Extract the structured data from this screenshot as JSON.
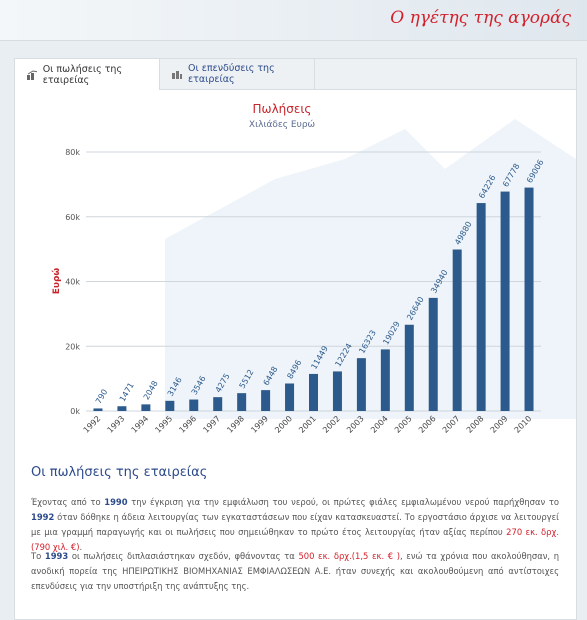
{
  "header": {
    "slogan": "Ο ηγέτης της αγοράς"
  },
  "tabs": [
    "Οι πωλήσεις της εταιρείας",
    "Οι επενδύσεις της εταιρείας"
  ],
  "chart_data": {
    "type": "bar",
    "title": "Πωλήσεις",
    "subtitle": "Χιλιάδες Ευρώ",
    "y_label": "Ευρώ",
    "categories": [
      "1992",
      "1993",
      "1994",
      "1995",
      "1996",
      "1997",
      "1998",
      "1999",
      "2000",
      "2001",
      "2002",
      "2003",
      "2004",
      "2005",
      "2006",
      "2007",
      "2008",
      "2009",
      "2010"
    ],
    "values": [
      790,
      1471,
      2048,
      3146,
      3546,
      4275,
      5512,
      6448,
      8496,
      11449,
      12224,
      16323,
      19029,
      26640,
      34940,
      49880,
      64226,
      67778,
      69006
    ],
    "color": "#2c5a8c",
    "ylim": [
      0,
      80000
    ],
    "yticks": [
      {
        "value": 0,
        "label": "0k"
      },
      {
        "value": 20000,
        "label": "20k"
      },
      {
        "value": 40000,
        "label": "40k"
      },
      {
        "value": 60000,
        "label": "60k"
      },
      {
        "value": 80000,
        "label": "80k"
      }
    ],
    "grid": true
  },
  "section": {
    "title": "Οι πωλήσεις της εταιρείας",
    "paragraphs": [
      [
        "Έχοντας από το ",
        "1990",
        " την έγκριση για την εμφιάλωση του νερού, οι πρώτες φιάλες εμφιαλωμένου νερού παρήχθησαν το ",
        "1992",
        " όταν δόθηκε η άδεια λειτουργίας των εγκαταστάσεων που είχαν κατασκευαστεί. Το εργοστάσιο άρχισε να λειτουργεί με μια γραμμή παραγωγής και οι πωλήσεις που σημειώθηκαν το πρώτο έτος λειτουργίας ήταν αξίας περίπου ",
        "270 εκ. δρχ. (790 χιλ. €)",
        "."
      ],
      [
        "Το ",
        "1993",
        " οι πωλήσεις διπλασιάστηκαν σχεδόν, φθάνοντας τα ",
        "500 εκ. δρχ.(1,5 εκ. € )",
        ", ενώ τα χρόνια που ακολούθησαν, η ανοδική πορεία της ΗΠΕΙΡΩΤΙΚΗΣ ΒΙΟΜΗΧΑΝΙΑΣ ΕΜΦΙΑΛΩΣΕΩΝ Α.Ε. ήταν συνεχής και ακολουθούμενη από αντίστοιχες επενδύσεις για την υποστήριξη της ανάπτυξης της."
      ]
    ]
  }
}
